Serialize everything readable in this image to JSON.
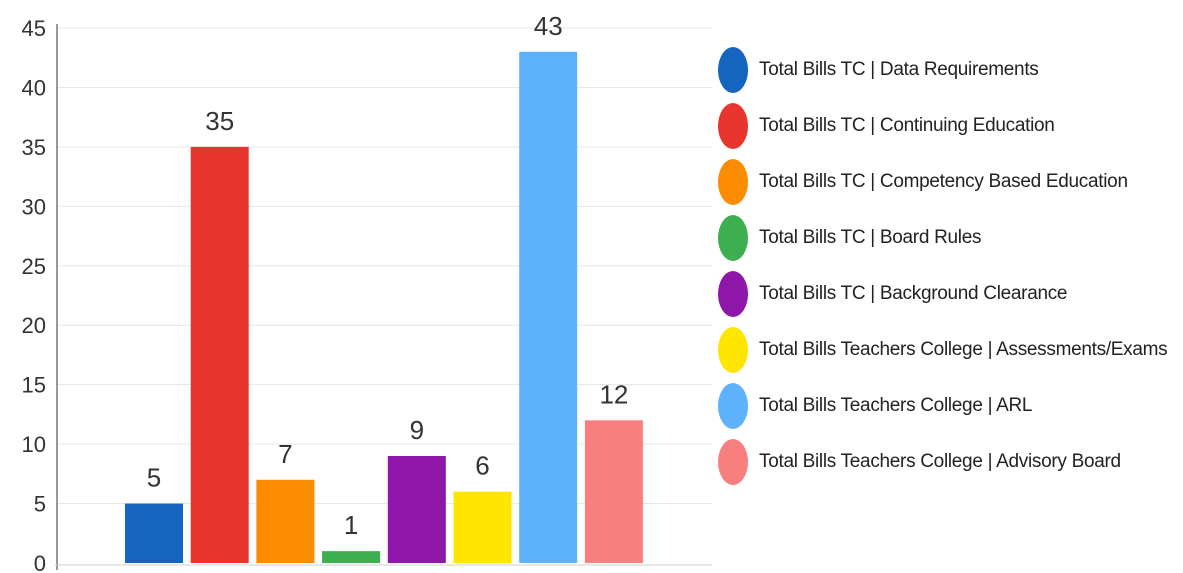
{
  "chart_data": {
    "type": "bar",
    "title": "",
    "xlabel": "",
    "ylabel": "",
    "ylim": [
      0,
      45
    ],
    "yticks": [
      0,
      5,
      10,
      15,
      20,
      25,
      30,
      35,
      40,
      45
    ],
    "grid": true,
    "legend_position": "right",
    "data_labels": true,
    "series": [
      {
        "name": "Total Bills TC | Data Requirements",
        "value": 5,
        "color": "#1565c0"
      },
      {
        "name": "Total Bills TC | Continuing Education",
        "value": 35,
        "color": "#e8352e"
      },
      {
        "name": "Total Bills TC | Competency Based Education",
        "value": 7,
        "color": "#fb8c00"
      },
      {
        "name": "Total Bills TC | Board Rules",
        "value": 1,
        "color": "#3daf50"
      },
      {
        "name": "Total Bills TC | Background Clearance",
        "value": 9,
        "color": "#8e17aa"
      },
      {
        "name": "Total Bills Teachers College | Assessments/Exams",
        "value": 6,
        "color": "#ffe600"
      },
      {
        "name": "Total Bills Teachers College | ARL",
        "value": 43,
        "color": "#5eb2fb"
      },
      {
        "name": "Total Bills Teachers College | Advisory Board",
        "value": 12,
        "color": "#f77f7f"
      }
    ]
  }
}
